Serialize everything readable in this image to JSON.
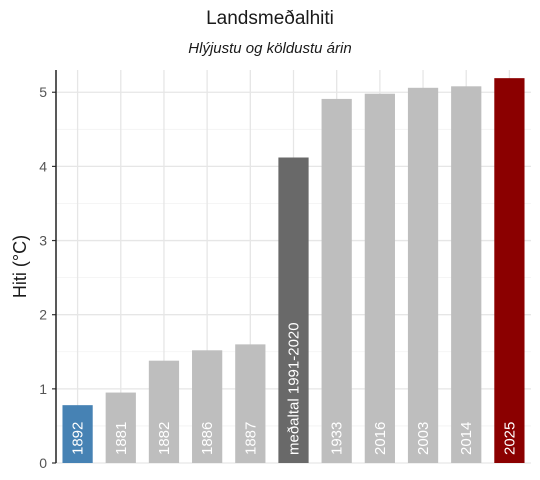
{
  "chart_data": {
    "type": "bar",
    "title": "Landsmeðalhiti",
    "subtitle": "Hlýjustu og köldustu árin",
    "xlabel": "",
    "ylabel": "Hiti (°C)",
    "ylim": [
      0,
      5.3
    ],
    "yticks": [
      0,
      1,
      2,
      3,
      4,
      5
    ],
    "grid": true,
    "categories": [
      "1892",
      "1881",
      "1882",
      "1886",
      "1887",
      "meðaltal 1991-2020",
      "1933",
      "2016",
      "2003",
      "2014",
      "2025"
    ],
    "values": [
      0.78,
      0.95,
      1.38,
      1.52,
      1.6,
      4.12,
      4.91,
      4.98,
      5.06,
      5.08,
      5.19
    ],
    "colors": [
      "#4682b4",
      "#bebebe",
      "#bebebe",
      "#bebebe",
      "#bebebe",
      "#696969",
      "#bebebe",
      "#bebebe",
      "#bebebe",
      "#bebebe",
      "#8b0000"
    ]
  }
}
